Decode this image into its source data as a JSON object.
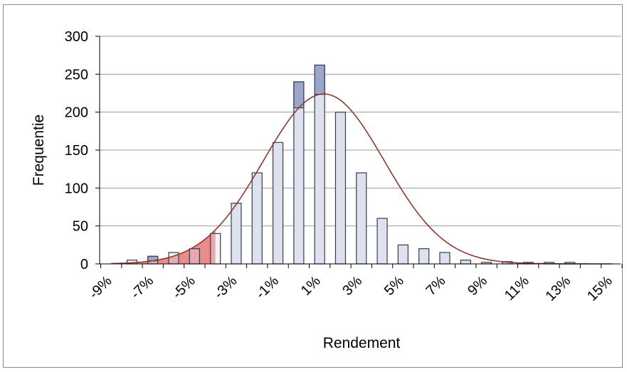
{
  "chart_data": {
    "type": "bar",
    "title": "",
    "xlabel": "Rendement",
    "ylabel": "Frequentie",
    "ylim": [
      0,
      300
    ],
    "yticks": [
      "0",
      "50",
      "100",
      "150",
      "200",
      "250",
      "300"
    ],
    "xtick_labels": [
      "-9%",
      "-7%",
      "-5%",
      "-3%",
      "-1%",
      "1%",
      "3%",
      "5%",
      "7%",
      "9%",
      "11%",
      "13%",
      "15%"
    ],
    "grid": true,
    "categories": [
      "-9%",
      "-8%",
      "-7%",
      "-6%",
      "-5%",
      "-4%",
      "-3%",
      "-2%",
      "-1%",
      "0%",
      "1%",
      "2%",
      "3%",
      "4%",
      "5%",
      "6%",
      "7%",
      "8%",
      "9%",
      "10%",
      "11%",
      "12%",
      "13%",
      "14%",
      "15%"
    ],
    "values": [
      0,
      5,
      10,
      15,
      20,
      40,
      80,
      120,
      160,
      240,
      262,
      200,
      120,
      60,
      25,
      20,
      15,
      5,
      2,
      3,
      2,
      2,
      2,
      0,
      0
    ],
    "normal_curve": {
      "mean": 1.2,
      "sd": 2.9,
      "peak": 224
    },
    "shaded_region": {
      "from": -9,
      "to": -4
    },
    "colors": {
      "bar_fill": "#dde2ee",
      "bar_stroke": "#3a3a50",
      "bar_top_fill": "#9aa6cc",
      "curve": "#8b3a32",
      "shade": "#e87878",
      "grid": "#9a9a9a"
    }
  }
}
